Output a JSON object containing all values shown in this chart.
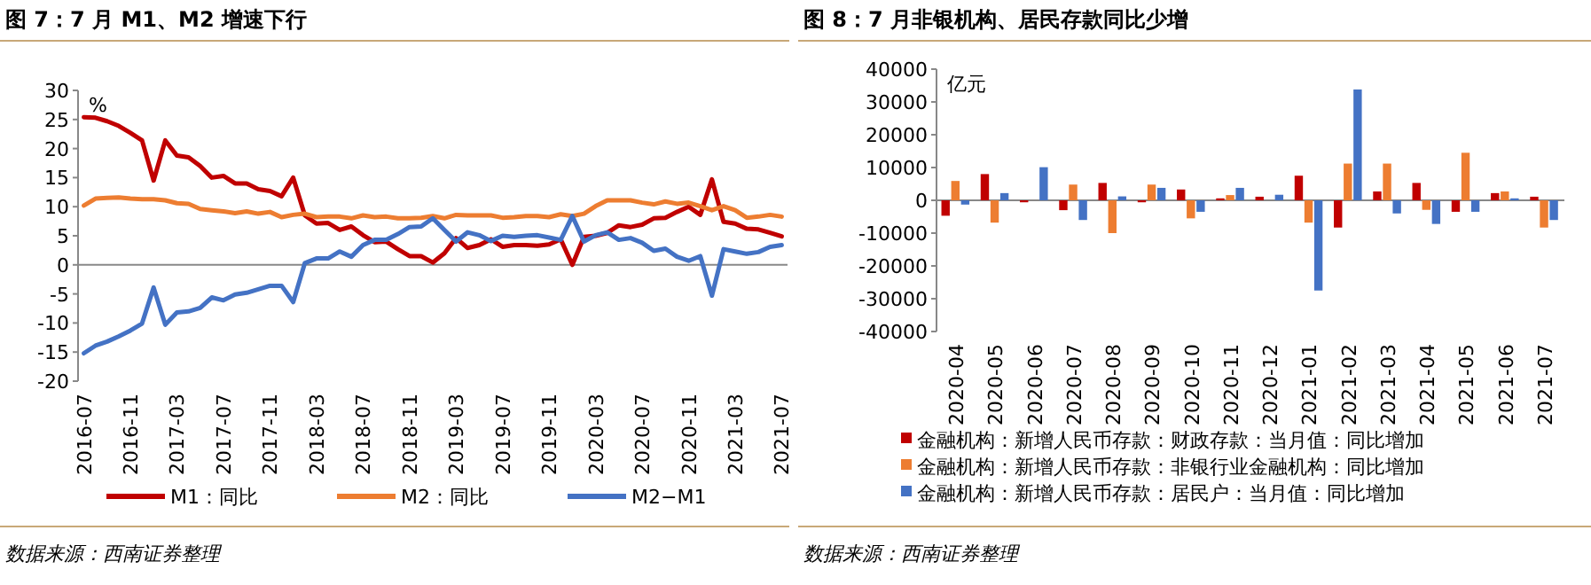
{
  "chart_data": [
    {
      "type": "line",
      "title": "图 7：7 月 M1、M2 增速下行",
      "ylabel": "%",
      "legend": "bottom",
      "categories": [
        "2016-07",
        null,
        null,
        null,
        "2016-11",
        null,
        null,
        null,
        "2017-03",
        null,
        null,
        null,
        "2017-07",
        null,
        null,
        null,
        "2017-11",
        null,
        null,
        null,
        "2018-03",
        null,
        null,
        null,
        "2018-07",
        null,
        null,
        null,
        "2018-11",
        null,
        null,
        null,
        "2019-03",
        null,
        null,
        null,
        "2019-07",
        null,
        null,
        null,
        "2019-11",
        null,
        null,
        null,
        "2020-03",
        null,
        null,
        null,
        "2020-07",
        null,
        null,
        null,
        "2020-11",
        null,
        null,
        null,
        "2021-03",
        null,
        null,
        null,
        "2021-07"
      ],
      "ylim": [
        -20,
        30
      ],
      "yticks": [
        -20,
        -15,
        -10,
        -5,
        0,
        5,
        10,
        15,
        20,
        25,
        30
      ],
      "series": [
        {
          "name": "M1：同比",
          "color": "#c00000",
          "values": [
            25.4,
            25.3,
            24.7,
            23.9,
            22.7,
            21.4,
            14.5,
            21.4,
            18.8,
            18.5,
            17.0,
            15.0,
            15.3,
            14.0,
            14.0,
            13.0,
            12.7,
            11.8,
            15.0,
            8.5,
            7.1,
            7.2,
            6.0,
            6.6,
            5.1,
            3.9,
            4.0,
            2.7,
            1.5,
            1.5,
            0.4,
            2.0,
            4.6,
            2.9,
            3.4,
            4.4,
            3.1,
            3.4,
            3.4,
            3.3,
            3.5,
            4.4,
            0.0,
            4.8,
            5.0,
            5.5,
            6.8,
            6.5,
            6.9,
            8.0,
            8.1,
            9.1,
            10.0,
            8.6,
            14.7,
            7.4,
            7.1,
            6.2,
            6.1,
            5.5,
            4.9
          ]
        },
        {
          "name": "M2：同比",
          "color": "#ed7d31",
          "values": [
            10.2,
            11.4,
            11.5,
            11.6,
            11.4,
            11.3,
            11.3,
            11.1,
            10.6,
            10.5,
            9.6,
            9.4,
            9.2,
            8.9,
            9.2,
            8.8,
            9.1,
            8.2,
            8.6,
            8.8,
            8.2,
            8.3,
            8.3,
            8.0,
            8.5,
            8.2,
            8.3,
            8.0,
            8.0,
            8.1,
            8.4,
            8.0,
            8.6,
            8.5,
            8.5,
            8.5,
            8.1,
            8.2,
            8.4,
            8.4,
            8.2,
            8.7,
            8.4,
            8.8,
            10.1,
            11.1,
            11.1,
            11.1,
            10.7,
            10.4,
            10.9,
            10.5,
            10.7,
            10.1,
            9.4,
            10.1,
            9.4,
            8.1,
            8.3,
            8.6,
            8.3
          ]
        },
        {
          "name": "M2−M1",
          "color": "#4472c4",
          "values": [
            -15.2,
            -13.9,
            -13.2,
            -12.3,
            -11.3,
            -10.1,
            -3.9,
            -10.3,
            -8.2,
            -8.0,
            -7.4,
            -5.6,
            -6.1,
            -5.1,
            -4.8,
            -4.2,
            -3.6,
            -3.6,
            -6.4,
            0.3,
            1.1,
            1.1,
            2.3,
            1.4,
            3.4,
            4.3,
            4.3,
            5.3,
            6.5,
            6.6,
            8.0,
            6.0,
            4.0,
            5.6,
            5.1,
            4.1,
            5.0,
            4.8,
            5.0,
            5.1,
            4.7,
            4.3,
            8.4,
            4.0,
            5.1,
            5.6,
            4.3,
            4.6,
            3.8,
            2.4,
            2.8,
            1.4,
            0.7,
            1.5,
            -5.3,
            2.7,
            2.3,
            1.9,
            2.2,
            3.1,
            3.4
          ]
        }
      ],
      "annotations": [
        "数据来源：西南证券整理"
      ]
    },
    {
      "type": "bar",
      "title": "图 8：7 月非银机构、居民存款同比少增",
      "ylabel": "亿元",
      "legend": "bottom",
      "categories": [
        "2020-04",
        "2020-05",
        "2020-06",
        "2020-07",
        "2020-08",
        "2020-09",
        "2020-10",
        "2020-11",
        "2020-12",
        "2021-01",
        "2021-02",
        "2021-03",
        "2021-04",
        "2021-05",
        "2021-06",
        "2021-07"
      ],
      "ylim": [
        -40000,
        40000
      ],
      "yticks": [
        -40000,
        -30000,
        -20000,
        -10000,
        0,
        10000,
        20000,
        30000,
        40000
      ],
      "series": [
        {
          "name": "金融机构：新增人民币存款：财政存款：当月值：同比增加",
          "color": "#c00000",
          "values": [
            -4700,
            8000,
            -600,
            -3000,
            5300,
            -600,
            3300,
            600,
            1100,
            7500,
            -8300,
            2700,
            5300,
            -3500,
            2200,
            1100
          ]
        },
        {
          "name": "金融机构：新增人民币存款：非银行业金融机构：同比增加",
          "color": "#ed7d31",
          "values": [
            5900,
            -6800,
            0,
            4800,
            -10000,
            4800,
            -5500,
            1600,
            0,
            -6800,
            11200,
            11200,
            -2900,
            14500,
            2700,
            -8300
          ]
        },
        {
          "name": "金融机构：新增人民币存款：居民户：当月值：同比增加",
          "color": "#4472c4",
          "values": [
            -1300,
            2200,
            10100,
            -6000,
            1200,
            3800,
            -3500,
            3800,
            1700,
            -27500,
            33800,
            -4000,
            -7200,
            -3500,
            600,
            -6000
          ]
        }
      ],
      "annotations": [
        "数据来源：西南证券整理"
      ]
    }
  ]
}
